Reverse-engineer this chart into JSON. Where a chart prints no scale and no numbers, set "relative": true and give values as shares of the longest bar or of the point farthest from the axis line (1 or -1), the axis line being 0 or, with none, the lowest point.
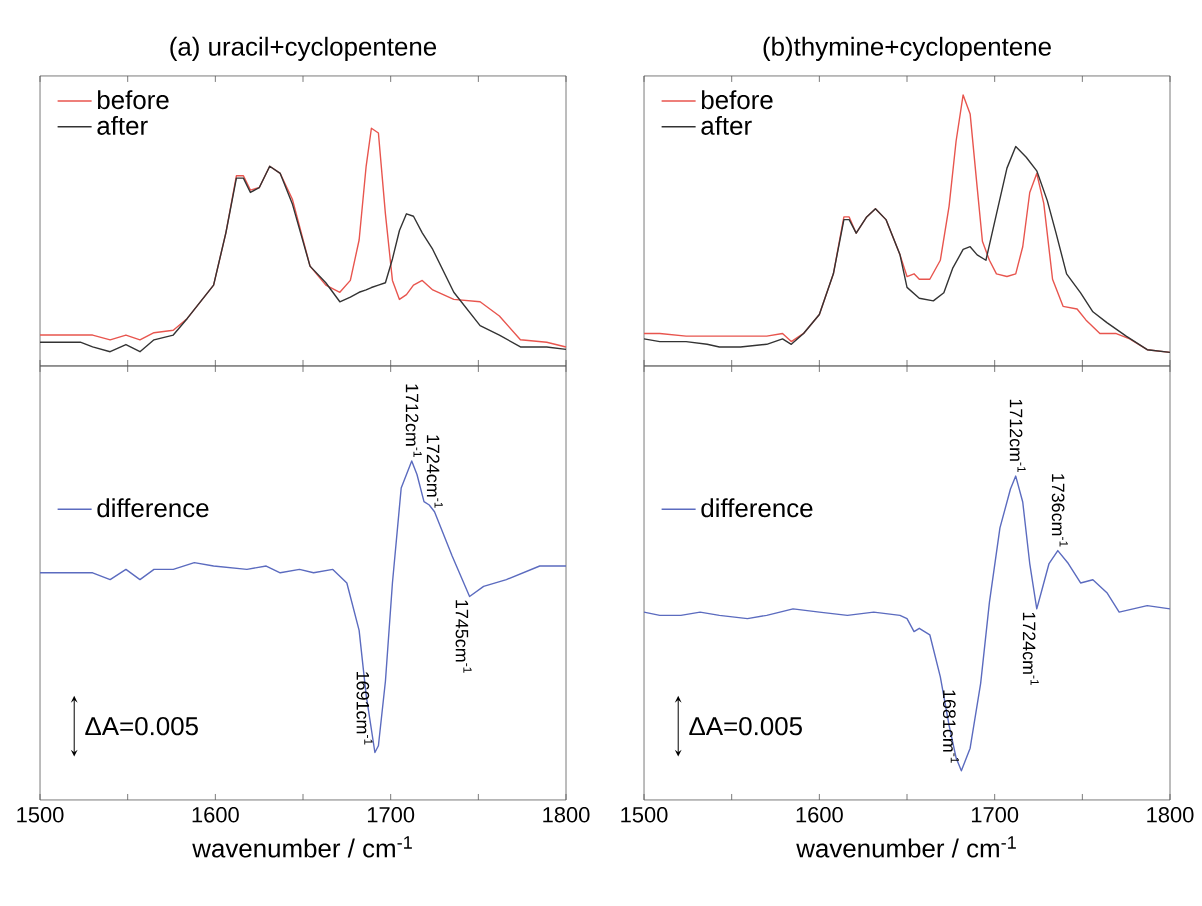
{
  "chart_data": [
    {
      "type": "line",
      "title": "(a) uracil+cyclopentene",
      "relative": true,
      "xlim": [
        1500,
        1800
      ],
      "xticks": [
        1500,
        {
          "value": 1550,
          "label": null
        },
        1600,
        {
          "value": 1650,
          "label": null
        },
        1700,
        {
          "value": 1750,
          "label": null
        },
        1800
      ],
      "tick_labels": false,
      "legend": "top left",
      "series": [
        {
          "name": "before",
          "color": "#e8554e",
          "x": [
            1500,
            1523,
            1530,
            1540,
            1549,
            1557,
            1565,
            1576,
            1584,
            1599,
            1606,
            1612,
            1616,
            1620,
            1625,
            1631,
            1637,
            1644,
            1654,
            1663,
            1671,
            1677,
            1682,
            1686,
            1689,
            1693,
            1697,
            1701,
            1705,
            1709,
            1713,
            1718,
            1724,
            1736,
            1751,
            1762,
            1774,
            1789,
            1800
          ],
          "values": [
            0.13,
            0.13,
            0.13,
            0.11,
            0.13,
            0.11,
            0.14,
            0.15,
            0.2,
            0.34,
            0.56,
            0.8,
            0.8,
            0.74,
            0.75,
            0.84,
            0.81,
            0.7,
            0.42,
            0.34,
            0.31,
            0.36,
            0.53,
            0.84,
            1,
            0.98,
            0.64,
            0.36,
            0.28,
            0.3,
            0.34,
            0.36,
            0.32,
            0.28,
            0.27,
            0.21,
            0.11,
            0.1,
            0.08
          ]
        },
        {
          "name": "after",
          "color": "#333333",
          "x": [
            1500,
            1523,
            1530,
            1540,
            1549,
            1557,
            1565,
            1576,
            1584,
            1599,
            1606,
            1612,
            1616,
            1620,
            1625,
            1631,
            1637,
            1644,
            1654,
            1663,
            1671,
            1677,
            1682,
            1686,
            1689,
            1693,
            1697,
            1701,
            1705,
            1709,
            1713,
            1718,
            1724,
            1736,
            1751,
            1762,
            1774,
            1789,
            1800
          ],
          "values": [
            0.1,
            0.1,
            0.08,
            0.06,
            0.09,
            0.06,
            0.11,
            0.13,
            0.2,
            0.34,
            0.56,
            0.79,
            0.79,
            0.73,
            0.75,
            0.84,
            0.81,
            0.68,
            0.42,
            0.35,
            0.27,
            0.29,
            0.31,
            0.32,
            0.33,
            0.34,
            0.35,
            0.45,
            0.57,
            0.64,
            0.63,
            0.56,
            0.49,
            0.31,
            0.17,
            0.13,
            0.08,
            0.08,
            0.07
          ]
        }
      ]
    },
    {
      "type": "line",
      "title": "(b)thymine+cyclopentene",
      "relative": true,
      "xlim": [
        1500,
        1800
      ],
      "xticks": [
        1500,
        {
          "value": 1550,
          "label": null
        },
        1600,
        {
          "value": 1650,
          "label": null
        },
        1700,
        {
          "value": 1750,
          "label": null
        },
        1800
      ],
      "tick_labels": false,
      "legend": "top left",
      "series": [
        {
          "name": "before",
          "color": "#e8554e",
          "x": [
            1500,
            1509,
            1524,
            1536,
            1543,
            1555,
            1570,
            1579,
            1584,
            1591,
            1600,
            1608,
            1614,
            1617,
            1621,
            1627,
            1632,
            1638,
            1646,
            1650,
            1654,
            1657,
            1663,
            1669,
            1674,
            1678,
            1682,
            1686,
            1690,
            1693,
            1697,
            1701,
            1707,
            1712,
            1716,
            1720,
            1724,
            1728,
            1733,
            1739,
            1747,
            1752,
            1760,
            1769,
            1777,
            1787,
            1800
          ],
          "values": [
            0.12,
            0.12,
            0.11,
            0.11,
            0.11,
            0.11,
            0.11,
            0.12,
            0.09,
            0.12,
            0.19,
            0.34,
            0.55,
            0.55,
            0.49,
            0.55,
            0.58,
            0.54,
            0.41,
            0.33,
            0.34,
            0.32,
            0.32,
            0.39,
            0.59,
            0.83,
            1,
            0.93,
            0.66,
            0.46,
            0.39,
            0.34,
            0.33,
            0.34,
            0.44,
            0.64,
            0.71,
            0.6,
            0.32,
            0.22,
            0.21,
            0.17,
            0.12,
            0.12,
            0.1,
            0.06,
            0.05
          ]
        },
        {
          "name": "after",
          "color": "#333333",
          "x": [
            1500,
            1509,
            1524,
            1536,
            1543,
            1555,
            1570,
            1579,
            1584,
            1591,
            1600,
            1608,
            1614,
            1617,
            1621,
            1627,
            1632,
            1638,
            1646,
            1650,
            1657,
            1665,
            1671,
            1676,
            1682,
            1686,
            1690,
            1695,
            1701,
            1707,
            1712,
            1718,
            1724,
            1730,
            1735,
            1741,
            1749,
            1756,
            1764,
            1775,
            1787,
            1800
          ],
          "values": [
            0.1,
            0.09,
            0.09,
            0.08,
            0.07,
            0.07,
            0.08,
            0.1,
            0.08,
            0.12,
            0.19,
            0.34,
            0.54,
            0.54,
            0.49,
            0.55,
            0.58,
            0.54,
            0.41,
            0.29,
            0.25,
            0.24,
            0.27,
            0.36,
            0.43,
            0.44,
            0.41,
            0.39,
            0.56,
            0.73,
            0.81,
            0.77,
            0.72,
            0.61,
            0.49,
            0.34,
            0.27,
            0.2,
            0.16,
            0.11,
            0.06,
            0.05
          ]
        }
      ]
    },
    {
      "type": "line",
      "xlabel": "wavenumber / cm$^{-1}$",
      "relative": true,
      "xlim": [
        1500,
        1800
      ],
      "xticks": [
        1500,
        {
          "value": 1550,
          "label": null
        },
        1600,
        {
          "value": 1650,
          "label": null
        },
        1700,
        {
          "value": 1750,
          "label": null
        },
        1800
      ],
      "tick_labels": "x",
      "legend": "left",
      "series": [
        {
          "name": "difference",
          "color": "#5b6bbf",
          "x": [
            1500,
            1523,
            1530,
            1540,
            1549,
            1557,
            1565,
            1576,
            1588,
            1599,
            1618,
            1629,
            1637,
            1648,
            1656,
            1667,
            1675,
            1682,
            1686,
            1691,
            1693,
            1697,
            1701,
            1706,
            1712,
            1715,
            1719,
            1722,
            1725,
            1735,
            1745,
            1753,
            1766,
            1785,
            1800
          ],
          "values": [
            0.67,
            0.67,
            0.67,
            0.65,
            0.68,
            0.65,
            0.68,
            0.68,
            0.7,
            0.69,
            0.68,
            0.69,
            0.67,
            0.68,
            0.67,
            0.68,
            0.64,
            0.5,
            0.31,
            0.14,
            0.16,
            0.35,
            0.64,
            0.92,
            1,
            0.96,
            0.88,
            0.87,
            0.85,
            0.72,
            0.6,
            0.63,
            0.65,
            0.69,
            0.69
          ]
        }
      ],
      "annotations": [
        {
          "text": "1712cm$^{-1}$",
          "x": 1712,
          "y": 1
        },
        {
          "text": "1724cm$^{-1}$",
          "x": 1724,
          "y": 0.85
        },
        {
          "text": "1745cm$^{-1}$",
          "x": 1745,
          "y": 0.6
        },
        {
          "text": "1691cm$^{-1}$",
          "x": 1691,
          "y": 0.14
        },
        "ΔA=0.005"
      ]
    },
    {
      "type": "line",
      "xlabel": "wavenumber / cm$^{-1}$",
      "relative": true,
      "xlim": [
        1500,
        1800
      ],
      "xticks": [
        1500,
        {
          "value": 1550,
          "label": null
        },
        1600,
        {
          "value": 1650,
          "label": null
        },
        1700,
        {
          "value": 1750,
          "label": null
        },
        1800
      ],
      "tick_labels": "x",
      "legend": "left",
      "series": [
        {
          "name": "difference",
          "color": "#5b6bbf",
          "x": [
            1500,
            1509,
            1521,
            1532,
            1543,
            1559,
            1570,
            1585,
            1600,
            1616,
            1631,
            1646,
            1650,
            1654,
            1657,
            1663,
            1669,
            1674,
            1678,
            1681,
            1686,
            1692,
            1697,
            1703,
            1709,
            1712,
            1716,
            1720,
            1724,
            1727,
            1731,
            1736,
            1742,
            1749,
            1756,
            1764,
            1771,
            1779,
            1787,
            1800
          ],
          "values": [
            0.58,
            0.57,
            0.57,
            0.58,
            0.57,
            0.56,
            0.57,
            0.59,
            0.58,
            0.57,
            0.58,
            0.57,
            0.56,
            0.52,
            0.53,
            0.51,
            0.38,
            0.23,
            0.13,
            0.09,
            0.16,
            0.36,
            0.61,
            0.84,
            0.96,
            1,
            0.92,
            0.73,
            0.59,
            0.65,
            0.73,
            0.77,
            0.73,
            0.67,
            0.68,
            0.64,
            0.58,
            0.59,
            0.6,
            0.59
          ]
        }
      ],
      "annotations": [
        {
          "text": "1712cm$^{-1}$",
          "x": 1712,
          "y": 1
        },
        {
          "text": "1736cm$^{-1}$",
          "x": 1736,
          "y": 0.77
        },
        {
          "text": "1724cm$^{-1}$",
          "x": 1724,
          "y": 0.59
        },
        {
          "text": "1681cm$^{-1}$",
          "x": 1681,
          "y": 0.09
        },
        "ΔA=0.005"
      ]
    }
  ]
}
